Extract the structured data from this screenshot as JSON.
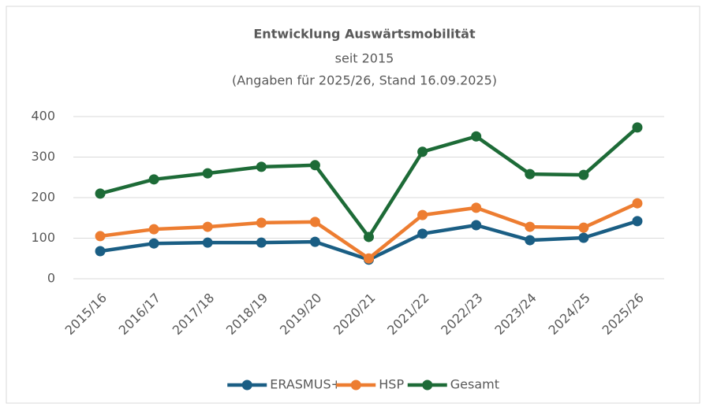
{
  "chart_data": {
    "type": "line",
    "title": "Entwicklung Auswärtsmobilität",
    "subtitle": [
      "seit 2015",
      "(Angaben für 2025/26, Stand 16.09.2025)"
    ],
    "categories": [
      "2015/16",
      "2016/17",
      "2017/18",
      "2018/19",
      "2019/20",
      "2020/21",
      "2021/22",
      "2022/23",
      "2023/24",
      "2024/25",
      "2025/26"
    ],
    "series": [
      {
        "name": "ERASMUS+",
        "color": "#1a5e84",
        "values": [
          68,
          87,
          89,
          89,
          91,
          47,
          111,
          132,
          95,
          101,
          142
        ]
      },
      {
        "name": "HSP",
        "color": "#ed7d31",
        "values": [
          105,
          122,
          128,
          138,
          140,
          50,
          157,
          175,
          128,
          126,
          186
        ]
      },
      {
        "name": "Gesamt",
        "color": "#1d6b37",
        "values": [
          210,
          245,
          260,
          276,
          280,
          103,
          313,
          351,
          258,
          256,
          373
        ]
      }
    ],
    "ylim": [
      0,
      400
    ],
    "yticks": [
      0,
      100,
      200,
      300,
      400
    ],
    "grid": true,
    "legend": "bottom"
  }
}
